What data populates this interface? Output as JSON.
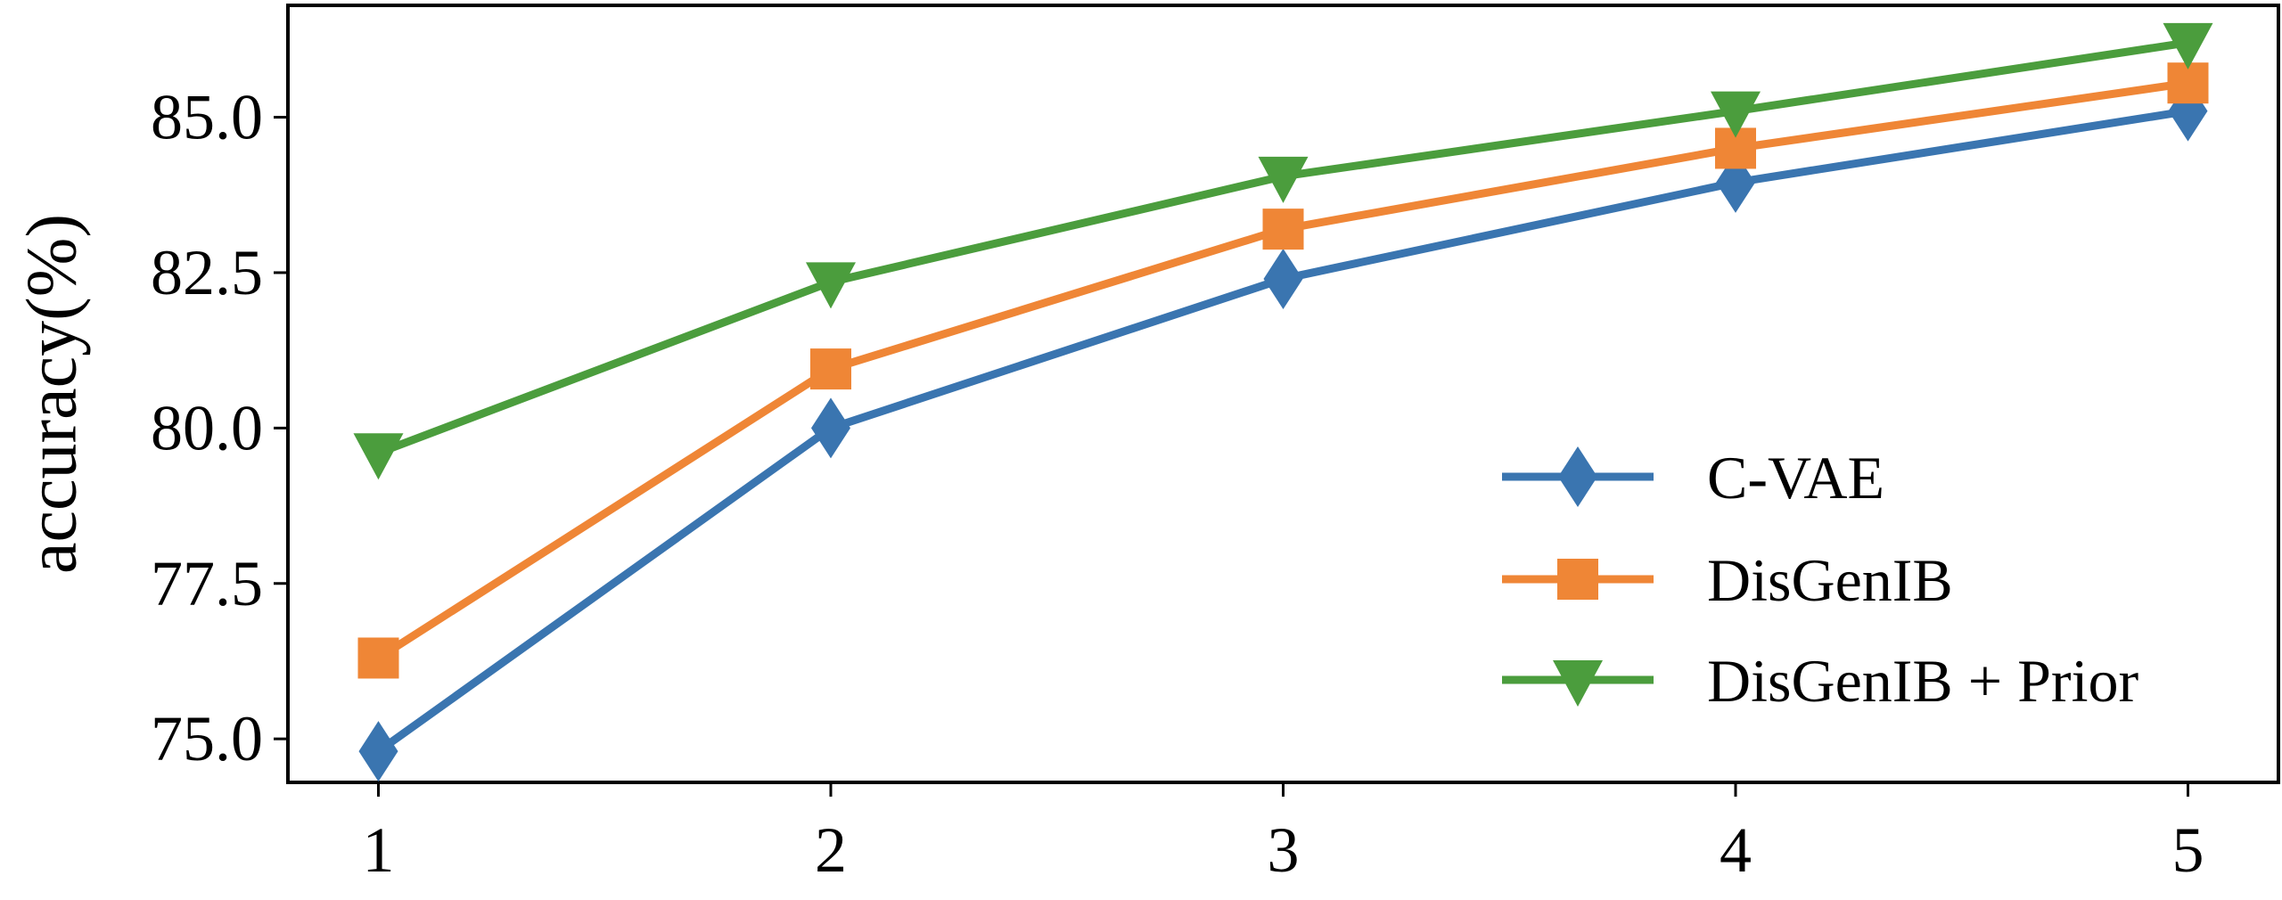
{
  "chart_data": {
    "type": "line",
    "title": "",
    "xlabel": "",
    "ylabel": "accuracy(%)",
    "x": [
      1,
      2,
      3,
      4,
      5
    ],
    "x_tick_labels": [
      "1",
      "2",
      "3",
      "4",
      "5"
    ],
    "y_ticks": [
      75.0,
      77.5,
      80.0,
      82.5,
      85.0
    ],
    "y_tick_labels": [
      "75.0",
      "77.5",
      "80.0",
      "82.5",
      "85.0"
    ],
    "xlim": [
      0.8,
      5.2
    ],
    "ylim": [
      74.3,
      86.8
    ],
    "grid": false,
    "legend_position": "lower-right",
    "series": [
      {
        "name": "C-VAE",
        "color": "#3a75b0",
        "marker": "diamond",
        "values": [
          74.8,
          80.0,
          82.4,
          83.95,
          85.1
        ]
      },
      {
        "name": "DisGenIB",
        "color": "#ef8636",
        "marker": "square",
        "values": [
          76.3,
          80.95,
          83.2,
          84.5,
          85.55
        ]
      },
      {
        "name": "DisGenIB + Prior",
        "color": "#4b9d3d",
        "marker": "triangle-down",
        "values": [
          79.6,
          82.35,
          84.05,
          85.1,
          86.2
        ]
      }
    ]
  }
}
